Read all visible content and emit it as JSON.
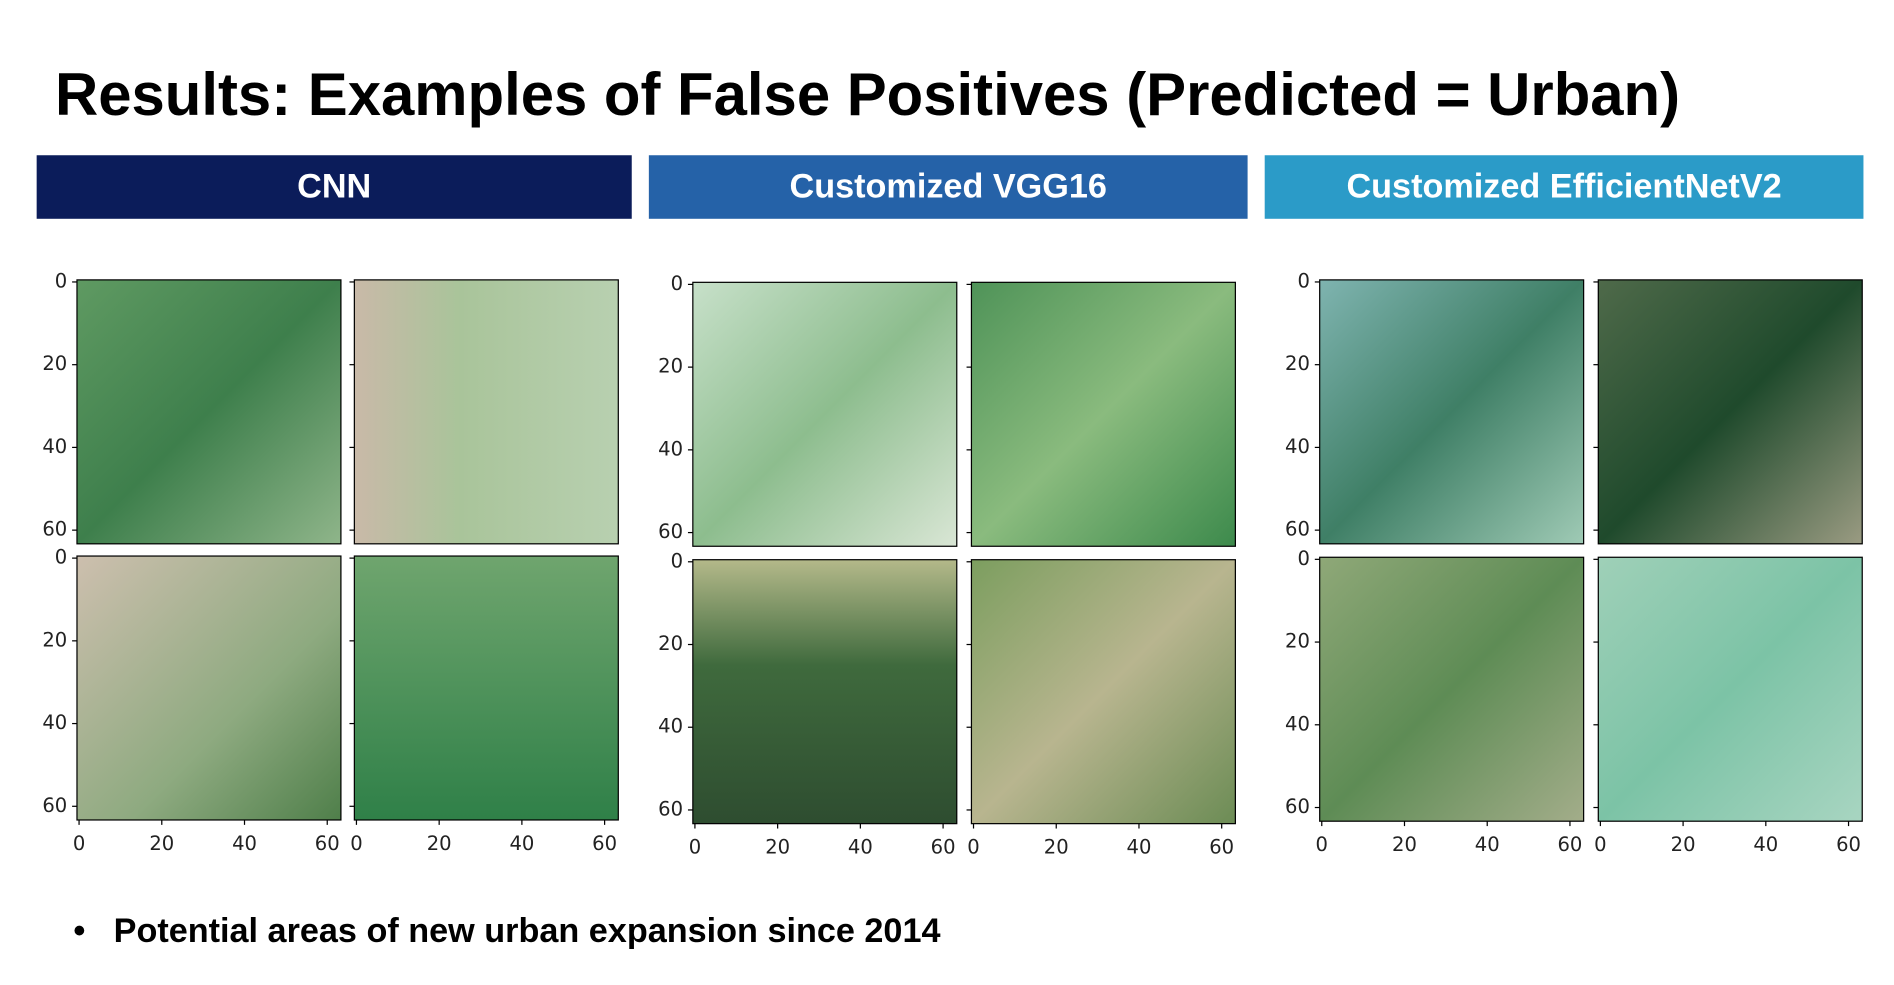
{
  "title": "Results: Examples of False Positives (Predicted = Urban)",
  "panels": [
    {
      "header": "CNN",
      "x_ticks": [
        0,
        20,
        40,
        60
      ],
      "y_ticks": [
        0,
        20,
        40,
        60
      ]
    },
    {
      "header": "Customized VGG16",
      "x_ticks": [
        0,
        20,
        40,
        60
      ],
      "y_ticks": [
        0,
        20,
        40,
        60
      ]
    },
    {
      "header": "Customized EfficientNetV2",
      "x_ticks": [
        0,
        20,
        40,
        60
      ],
      "y_ticks": [
        0,
        20,
        40,
        60
      ]
    }
  ],
  "bullet": "Potential areas of new urban expansion since 2014"
}
